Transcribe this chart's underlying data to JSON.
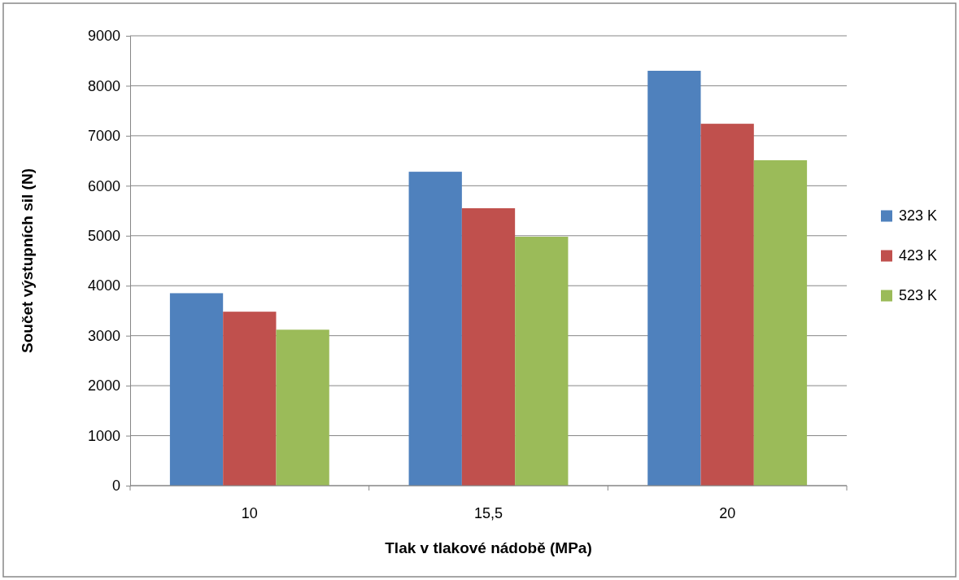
{
  "chart_data": {
    "type": "bar",
    "xlabel": "Tlak v tlakové nádobě (MPa)",
    "ylabel": "Součet výstupních sil (N)",
    "categories": [
      "10",
      "15,5",
      "20"
    ],
    "series": [
      {
        "name": "323 K",
        "color": "#4f81bd",
        "values": [
          3850,
          6280,
          8300
        ]
      },
      {
        "name": "423 K",
        "color": "#c0504d",
        "values": [
          3480,
          5550,
          7240
        ]
      },
      {
        "name": "523 K",
        "color": "#9bbb59",
        "values": [
          3120,
          4980,
          6510
        ]
      }
    ],
    "ylim": [
      0,
      9000
    ],
    "yticks": [
      0,
      1000,
      2000,
      3000,
      4000,
      5000,
      6000,
      7000,
      8000,
      9000
    ],
    "grid": "y",
    "legend": "right"
  }
}
